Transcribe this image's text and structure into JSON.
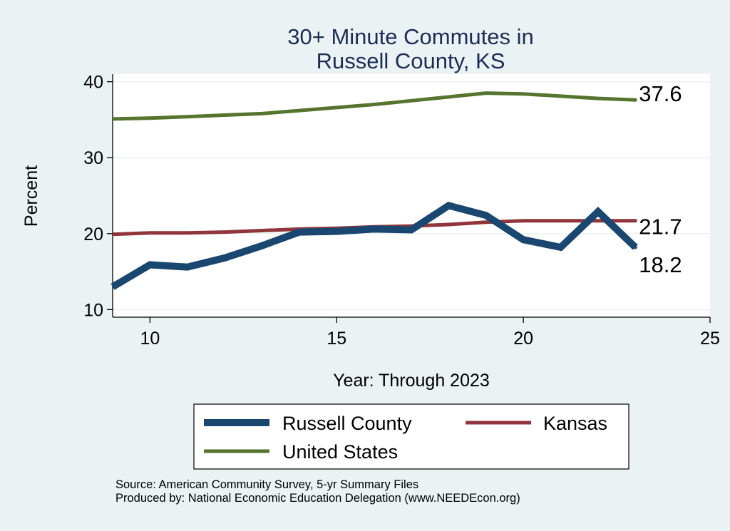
{
  "chart_data": {
    "type": "line",
    "title": [
      "30+ Minute Commutes in",
      "Russell County, KS"
    ],
    "xlabel": "Year: Through 2023",
    "ylabel": "Percent",
    "xlim": [
      9,
      25
    ],
    "ylim": [
      9,
      41
    ],
    "xticks": [
      10,
      15,
      20,
      25
    ],
    "yticks": [
      10,
      20,
      30,
      40
    ],
    "series": [
      {
        "name": "Russell County",
        "color": "#1a476f",
        "x": [
          9,
          10,
          11,
          12,
          13,
          14,
          15,
          16,
          17,
          18,
          19,
          20,
          21,
          22,
          23
        ],
        "values": [
          13.0,
          15.9,
          15.6,
          16.8,
          18.4,
          20.2,
          20.3,
          20.6,
          20.5,
          23.7,
          22.4,
          19.2,
          18.2,
          22.9,
          18.2
        ],
        "end_label": "18.2"
      },
      {
        "name": "Kansas",
        "color": "#90353b",
        "x": [
          9,
          10,
          11,
          12,
          13,
          14,
          15,
          16,
          17,
          18,
          19,
          20,
          21,
          22,
          23
        ],
        "values": [
          19.9,
          20.1,
          20.1,
          20.2,
          20.4,
          20.6,
          20.7,
          20.9,
          21.0,
          21.2,
          21.5,
          21.7,
          21.7,
          21.7,
          21.7
        ],
        "end_label": "21.7"
      },
      {
        "name": "United States",
        "color": "#55752f",
        "x": [
          9,
          10,
          11,
          12,
          13,
          14,
          15,
          16,
          17,
          18,
          19,
          20,
          21,
          22,
          23
        ],
        "values": [
          35.1,
          35.2,
          35.4,
          35.6,
          35.8,
          36.2,
          36.6,
          37.0,
          37.5,
          38.0,
          38.5,
          38.4,
          38.1,
          37.8,
          37.6
        ],
        "end_label": "37.6"
      }
    ],
    "legend": {
      "placement": "bottom",
      "entries": [
        "Russell County",
        "Kansas",
        "United States"
      ]
    }
  },
  "footer": {
    "source": "Source: American Community Survey, 5-yr Summary Files",
    "produced": "Produced by: National Economic Education Delegation (www.NEEDEcon.org)"
  }
}
